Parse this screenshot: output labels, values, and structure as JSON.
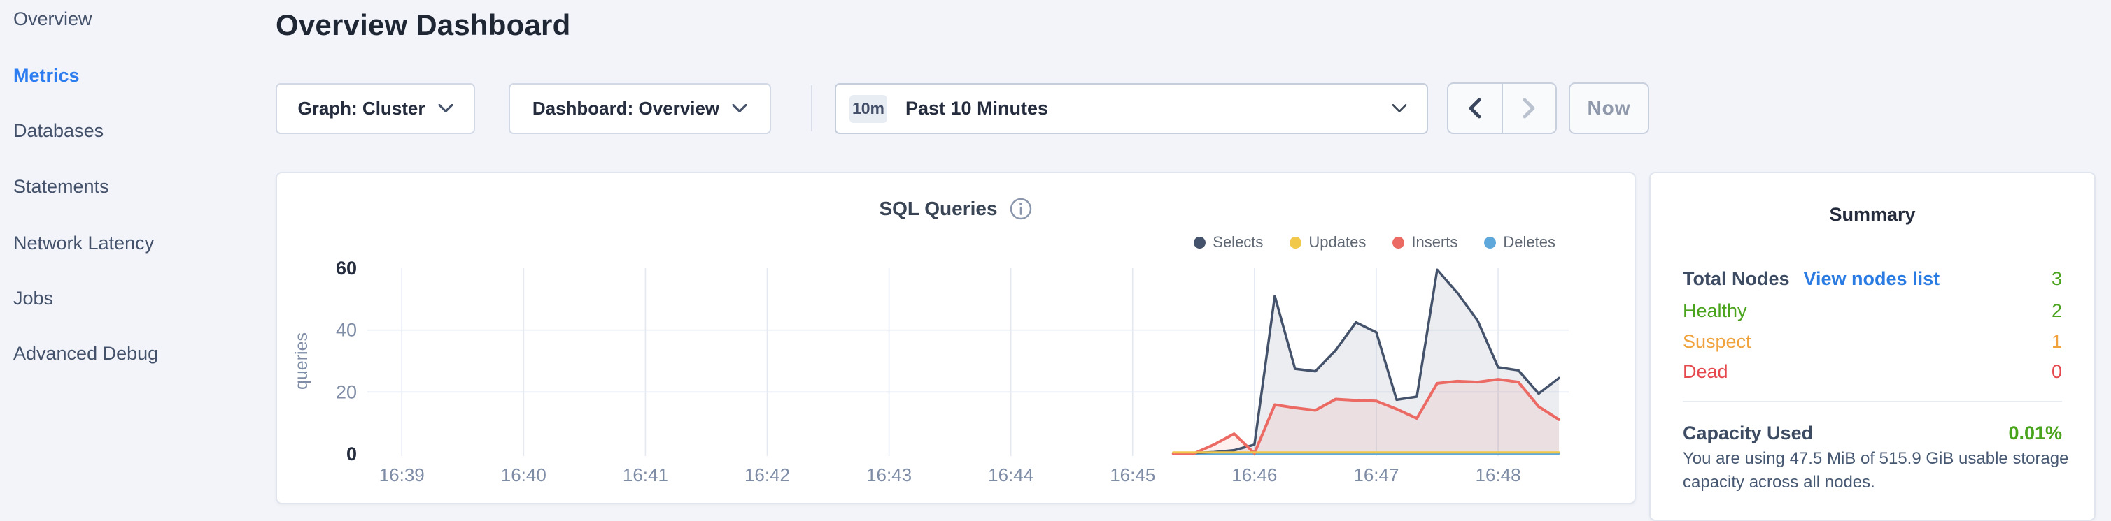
{
  "sidebar": {
    "items": [
      {
        "label": "Overview",
        "active": false
      },
      {
        "label": "Metrics",
        "active": true
      },
      {
        "label": "Databases",
        "active": false
      },
      {
        "label": "Statements",
        "active": false
      },
      {
        "label": "Network Latency",
        "active": false
      },
      {
        "label": "Jobs",
        "active": false
      },
      {
        "label": "Advanced Debug",
        "active": false
      }
    ],
    "active_color": "#2d7df0",
    "item_color": "#44516b"
  },
  "header": {
    "title": "Overview Dashboard"
  },
  "toolbar": {
    "graph_dropdown_label": "Graph: Cluster",
    "dashboard_dropdown_label": "Dashboard: Overview",
    "time_badge": "10m",
    "time_label": "Past 10 Minutes",
    "prev_icon": "chevron-left",
    "next_icon": "chevron-right",
    "now_label": "Now"
  },
  "summary": {
    "title": "Summary",
    "nodes_label": "Total Nodes",
    "nodes_link": "View nodes list",
    "nodes_value": "3",
    "rows": [
      {
        "label": "Healthy",
        "value": "2",
        "color": "#4aa31c"
      },
      {
        "label": "Suspect",
        "value": "1",
        "color": "#f0a33c"
      },
      {
        "label": "Dead",
        "value": "0",
        "color": "#e5484d"
      }
    ],
    "link_color": "#2b7ce2",
    "nodes_value_color": "#4aa31c",
    "capacity_label": "Capacity Used",
    "capacity_value": "0.01%",
    "capacity_value_color": "#4aa31c",
    "capacity_note": "You are using 47.5 MiB of 515.9 GiB usable storage capacity across all nodes."
  },
  "chart_data": {
    "type": "area",
    "title": "SQL Queries",
    "ylabel": "queries",
    "ylim": [
      0,
      60
    ],
    "yticks": [
      0,
      20,
      40,
      60
    ],
    "x_domain_minutes": [
      38.7,
      48.58
    ],
    "x_ticks": [
      {
        "m": 39,
        "label": "16:39"
      },
      {
        "m": 40,
        "label": "16:40"
      },
      {
        "m": 41,
        "label": "16:41"
      },
      {
        "m": 42,
        "label": "16:42"
      },
      {
        "m": 43,
        "label": "16:43"
      },
      {
        "m": 44,
        "label": "16:44"
      },
      {
        "m": 45,
        "label": "16:45"
      },
      {
        "m": 46,
        "label": "16:46"
      },
      {
        "m": 47,
        "label": "16:47"
      },
      {
        "m": 48,
        "label": "16:48"
      }
    ],
    "grid": true,
    "grid_color": "#e4e9f1",
    "axis_color": "#7e8ca6",
    "axis_strong_color": "#242c3d",
    "legend_position": "top-right",
    "series": [
      {
        "name": "Selects",
        "color": "#44536b",
        "fill": "rgba(68,83,107,0.10)",
        "width": 3.5,
        "z": 1,
        "x": [
          45.333,
          45.5,
          45.667,
          45.833,
          46.0,
          46.167,
          46.333,
          46.5,
          46.667,
          46.833,
          47.0,
          47.167,
          47.333,
          47.5,
          47.667,
          47.833,
          48.0,
          48.167,
          48.333,
          48.5
        ],
        "values": [
          0.3,
          0.3,
          0.6,
          1.2,
          3,
          51,
          27.5,
          26.7,
          33.5,
          42.5,
          39.3,
          17.5,
          18.5,
          59.5,
          52,
          43,
          28,
          27,
          19.5,
          24.5
        ]
      },
      {
        "name": "Updates",
        "color": "#f2c84b",
        "fill": null,
        "width": 3,
        "z": 3,
        "x": [
          45.333,
          48.5
        ],
        "values": [
          0.5,
          0.5
        ]
      },
      {
        "name": "Inserts",
        "color": "#ec6a64",
        "fill": "rgba(236,106,100,0.10)",
        "width": 4,
        "z": 2,
        "x": [
          45.333,
          45.5,
          45.667,
          45.833,
          46.0,
          46.167,
          46.333,
          46.5,
          46.667,
          46.833,
          47.0,
          47.167,
          47.333,
          47.5,
          47.667,
          47.833,
          48.0,
          48.167,
          48.333,
          48.5
        ],
        "values": [
          0.1,
          0.1,
          3,
          6.5,
          0.2,
          15.9,
          14.9,
          14.1,
          17.7,
          17.3,
          17.1,
          14.5,
          11.5,
          22.8,
          23.5,
          23.2,
          24.1,
          23.2,
          15.3,
          11.1
        ]
      },
      {
        "name": "Deletes",
        "color": "#5ea8dc",
        "fill": null,
        "width": 3,
        "z": 0,
        "x": [
          45.333,
          48.5
        ],
        "values": [
          0.1,
          0.1
        ]
      }
    ]
  }
}
